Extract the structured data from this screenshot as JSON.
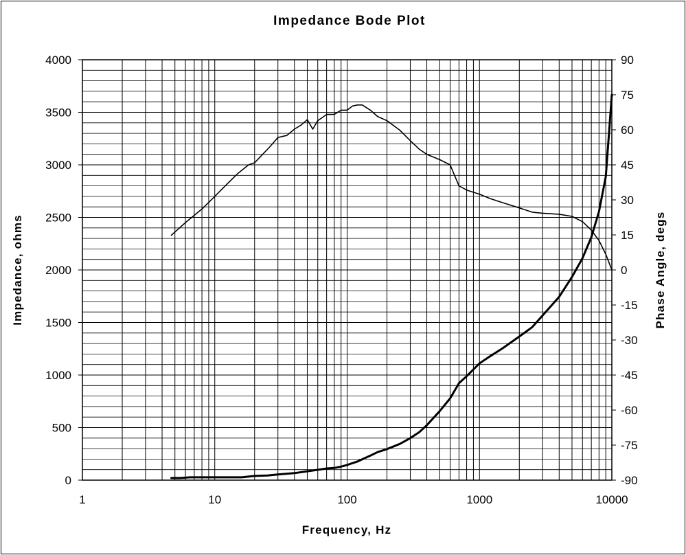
{
  "chart_data": {
    "type": "line",
    "title": "Impedance Bode Plot",
    "xlabel": "Frequency, Hz",
    "ylabel": "Impedance, ohms",
    "y2label": "Phase Angle, degs",
    "x_scale": "log",
    "xlim": [
      1,
      10000
    ],
    "ylim": [
      0,
      4000
    ],
    "y2lim": [
      -90,
      90
    ],
    "grid": true,
    "legend": "none",
    "x_ticks": [
      "1",
      "10",
      "100",
      "1000",
      "10000"
    ],
    "y_ticks": [
      "0",
      "500",
      "1000",
      "1500",
      "2000",
      "2500",
      "3000",
      "3500",
      "4000"
    ],
    "y2_ticks": [
      "-90",
      "-75",
      "-60",
      "-45",
      "-30",
      "-15",
      "0",
      "15",
      "30",
      "45",
      "60",
      "75",
      "90"
    ],
    "series": [
      {
        "axis": "left",
        "color": "#000000",
        "x": [
          4.7,
          6,
          8,
          10,
          12,
          15,
          18,
          20,
          23,
          26,
          30,
          35,
          40,
          45,
          50,
          55,
          60,
          65,
          70,
          80,
          90,
          100,
          110,
          120,
          130,
          150,
          170,
          200,
          250,
          300,
          350,
          400,
          500,
          600,
          700,
          800,
          1000,
          1200,
          1500,
          2000,
          2500,
          3000,
          4000,
          5000,
          6000,
          7000,
          8000,
          9000,
          10000
        ],
        "values": [
          2330,
          2450,
          2580,
          2700,
          2800,
          2920,
          3000,
          3020,
          3100,
          3170,
          3260,
          3280,
          3340,
          3380,
          3430,
          3340,
          3420,
          3450,
          3480,
          3480,
          3520,
          3520,
          3560,
          3570,
          3570,
          3520,
          3460,
          3420,
          3330,
          3230,
          3150,
          3100,
          3050,
          3000,
          2800,
          2760,
          2720,
          2680,
          2640,
          2590,
          2550,
          2540,
          2530,
          2510,
          2460,
          2380,
          2280,
          2150,
          2000
        ]
      },
      {
        "axis": "right",
        "color": "#000000",
        "x": [
          4.7,
          5.5,
          6.5,
          8,
          10,
          13,
          16,
          20,
          25,
          30,
          40,
          50,
          60,
          70,
          80,
          90,
          100,
          120,
          150,
          170,
          200,
          250,
          300,
          350,
          400,
          500,
          600,
          700,
          800,
          1000,
          1200,
          1500,
          2000,
          2500,
          3000,
          4000,
          5000,
          6000,
          7000,
          8000,
          9000,
          10000
        ],
        "values": [
          -89.1,
          -89.1,
          -88.8,
          -88.8,
          -88.8,
          -88.8,
          -88.8,
          -88.2,
          -88.0,
          -87.6,
          -87.0,
          -86.2,
          -85.6,
          -85.0,
          -84.8,
          -84.2,
          -83.5,
          -82.0,
          -79.5,
          -78.0,
          -76.7,
          -74.5,
          -72.0,
          -69.5,
          -66.5,
          -60.5,
          -55.0,
          -48.5,
          -45.5,
          -40.0,
          -37.0,
          -33.5,
          -28.5,
          -24.5,
          -19.5,
          -11.5,
          -3.0,
          5.0,
          14.0,
          25.0,
          40.0,
          75.0
        ]
      }
    ]
  }
}
